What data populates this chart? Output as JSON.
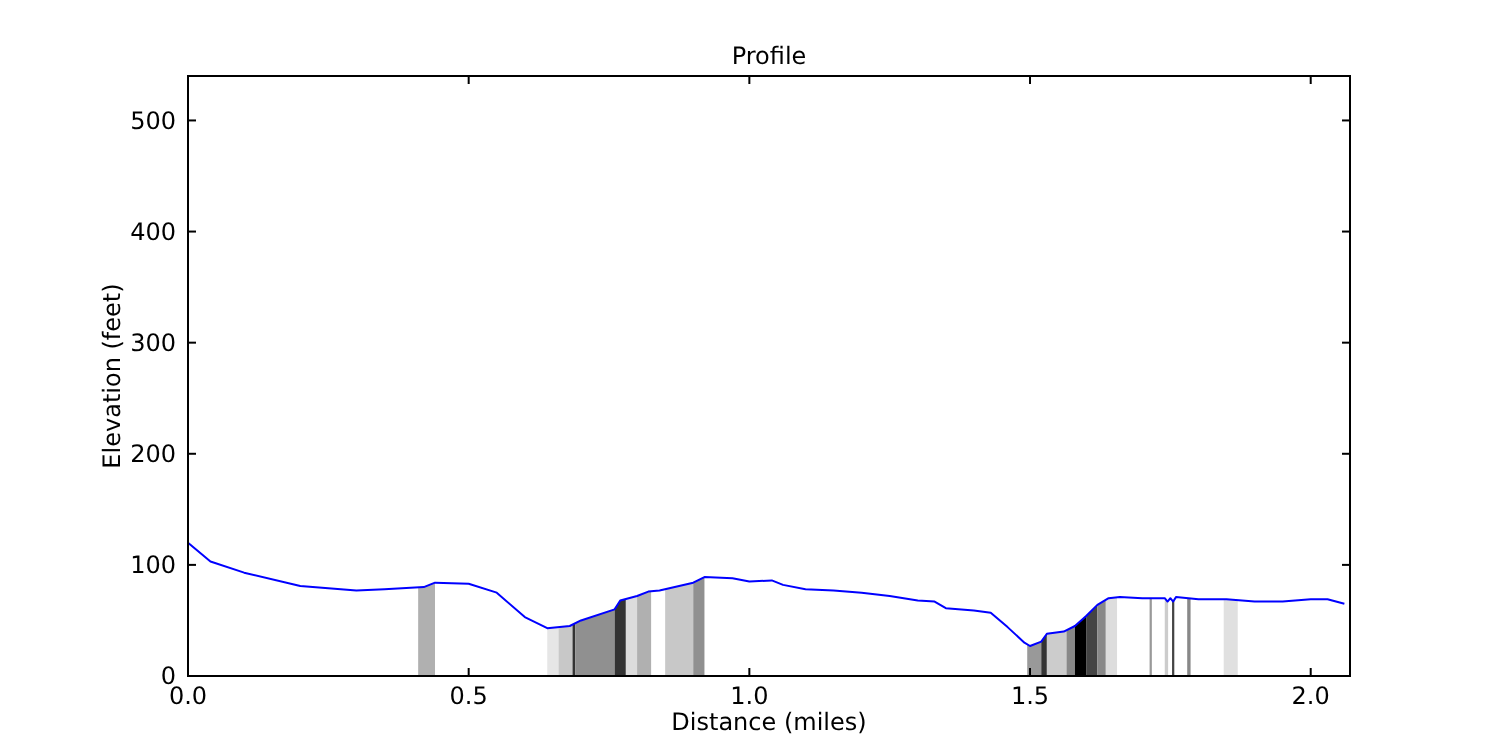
{
  "chart_data": {
    "type": "line",
    "title": "Profile",
    "xlabel": "Distance (miles)",
    "ylabel": "Elevation (feet)",
    "xlim": [
      0,
      2.07
    ],
    "ylim": [
      0,
      540
    ],
    "xticks": [
      {
        "value": 0,
        "label": "0.0"
      },
      {
        "value": 0.5,
        "label": "0.5"
      },
      {
        "value": 1,
        "label": "1.0"
      },
      {
        "value": 1.5,
        "label": "1.5"
      },
      {
        "value": 2,
        "label": "2.0"
      }
    ],
    "yticks": [
      0,
      100,
      200,
      300,
      400,
      500
    ],
    "grid": false,
    "marker": "none",
    "line_style": "solid",
    "series": [
      {
        "color": "#0000ff",
        "x": [
          0,
          0.04,
          0.1,
          0.2,
          0.3,
          0.35,
          0.42,
          0.44,
          0.5,
          0.55,
          0.6,
          0.64,
          0.68,
          0.7,
          0.76,
          0.77,
          0.8,
          0.82,
          0.84,
          0.9,
          0.92,
          0.97,
          1.0,
          1.04,
          1.06,
          1.1,
          1.15,
          1.2,
          1.25,
          1.3,
          1.33,
          1.35,
          1.4,
          1.43,
          1.46,
          1.49,
          1.5,
          1.52,
          1.53,
          1.56,
          1.58,
          1.6,
          1.62,
          1.64,
          1.66,
          1.7,
          1.74,
          1.745,
          1.75,
          1.755,
          1.76,
          1.8,
          1.85,
          1.9,
          1.95,
          2.0,
          2.03,
          2.06
        ],
        "values": [
          120,
          103,
          93,
          81,
          77,
          78,
          80,
          84,
          83,
          75,
          53,
          43,
          45,
          50,
          60,
          68,
          72,
          76,
          77,
          84,
          89,
          88,
          85,
          86,
          82,
          78,
          77,
          75,
          72,
          68,
          67,
          61,
          59,
          57,
          44,
          30,
          27,
          31,
          38,
          40,
          45,
          54,
          64,
          70,
          71,
          70,
          70,
          67,
          70,
          67,
          71,
          69,
          69,
          67,
          67,
          69,
          69,
          65
        ]
      }
    ],
    "bands": [
      {
        "axis": "x",
        "from": 0.41,
        "to": 0.44,
        "color": "#b0b0b0"
      },
      {
        "axis": "x",
        "from": 0.64,
        "to": 0.66,
        "color": "#e6e6e6"
      },
      {
        "axis": "x",
        "from": 0.66,
        "to": 0.685,
        "color": "#c8c8c8"
      },
      {
        "axis": "x",
        "from": 0.685,
        "to": 0.69,
        "color": "#333333"
      },
      {
        "axis": "x",
        "from": 0.69,
        "to": 0.76,
        "color": "#909090"
      },
      {
        "axis": "x",
        "from": 0.76,
        "to": 0.78,
        "color": "#333333"
      },
      {
        "axis": "x",
        "from": 0.78,
        "to": 0.8,
        "color": "#dcdcdc"
      },
      {
        "axis": "x",
        "from": 0.8,
        "to": 0.825,
        "color": "#b0b0b0"
      },
      {
        "axis": "x",
        "from": 0.85,
        "to": 0.9,
        "color": "#c8c8c8"
      },
      {
        "axis": "x",
        "from": 0.9,
        "to": 0.92,
        "color": "#909090"
      },
      {
        "axis": "x",
        "from": 1.495,
        "to": 1.52,
        "color": "#999999"
      },
      {
        "axis": "x",
        "from": 1.52,
        "to": 1.53,
        "color": "#333333"
      },
      {
        "axis": "x",
        "from": 1.53,
        "to": 1.565,
        "color": "#cccccc"
      },
      {
        "axis": "x",
        "from": 1.565,
        "to": 1.58,
        "color": "#888888"
      },
      {
        "axis": "x",
        "from": 1.58,
        "to": 1.6,
        "color": "#000000"
      },
      {
        "axis": "x",
        "from": 1.6,
        "to": 1.62,
        "color": "#444444"
      },
      {
        "axis": "x",
        "from": 1.62,
        "to": 1.635,
        "color": "#888888"
      },
      {
        "axis": "x",
        "from": 1.635,
        "to": 1.655,
        "color": "#dddddd"
      },
      {
        "axis": "x",
        "from": 1.713,
        "to": 1.717,
        "color": "#999999"
      },
      {
        "axis": "x",
        "from": 1.74,
        "to": 1.746,
        "color": "#cccccc"
      },
      {
        "axis": "x",
        "from": 1.753,
        "to": 1.757,
        "color": "#444444"
      },
      {
        "axis": "x",
        "from": 1.78,
        "to": 1.786,
        "color": "#888888"
      },
      {
        "axis": "x",
        "from": 1.845,
        "to": 1.87,
        "color": "#e0e0e0"
      }
    ]
  }
}
